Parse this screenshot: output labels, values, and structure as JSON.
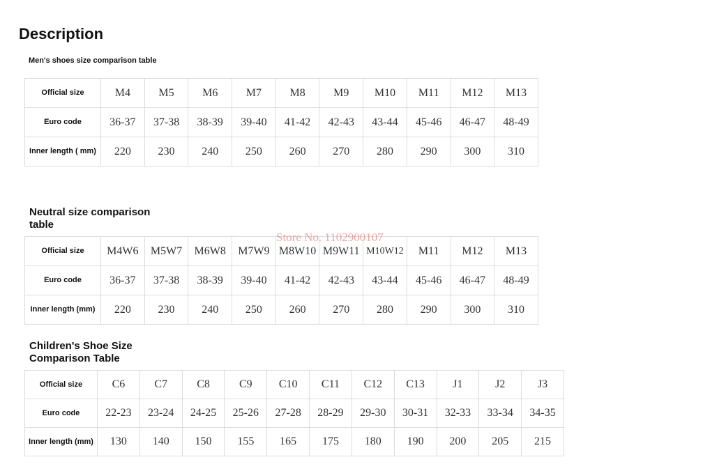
{
  "header": {
    "title": "Description"
  },
  "watermark": "Store No. 1102900107",
  "tables": [
    {
      "title": "Men's shoes size comparison table",
      "rows": [
        [
          "Official size",
          "M4",
          "M5",
          "M6",
          "M7",
          "M8",
          "M9",
          "M10",
          "M11",
          "M12",
          "M13"
        ],
        [
          "Euro code",
          "36-37",
          "37-38",
          "38-39",
          "39-40",
          "41-42",
          "42-43",
          "43-44",
          "45-46",
          "46-47",
          "48-49"
        ],
        [
          "Inner length ( mm)",
          "220",
          "230",
          "240",
          "250",
          "260",
          "270",
          "280",
          "290",
          "300",
          "310"
        ]
      ]
    },
    {
      "title": "Neutral size comparison table",
      "rows": [
        [
          "Official size",
          "M4W6",
          "M5W7",
          "M6W8",
          "M7W9",
          "M8W10",
          "M9W11",
          "M10W12",
          "M11",
          "M12",
          "M13"
        ],
        [
          "Euro code",
          "36-37",
          "37-38",
          "38-39",
          "39-40",
          "41-42",
          "42-43",
          "43-44",
          "45-46",
          "46-47",
          "48-49"
        ],
        [
          "Inner length (mm)",
          "220",
          "230",
          "240",
          "250",
          "260",
          "270",
          "280",
          "290",
          "300",
          "310"
        ]
      ]
    },
    {
      "title": "Children's Shoe Size Comparison Table",
      "rows": [
        [
          "Official size",
          "C6",
          "C7",
          "C8",
          "C9",
          "C10",
          "C11",
          "C12",
          "C13",
          "J1",
          "J2",
          "J3"
        ],
        [
          "Euro code",
          "22-23",
          "23-24",
          "24-25",
          "25-26",
          "27-28",
          "28-29",
          "29-30",
          "30-31",
          "32-33",
          "33-34",
          "34-35"
        ],
        [
          "Inner length (mm)",
          "130",
          "140",
          "150",
          "155",
          "165",
          "175",
          "180",
          "190",
          "200",
          "205",
          "215"
        ]
      ]
    }
  ]
}
